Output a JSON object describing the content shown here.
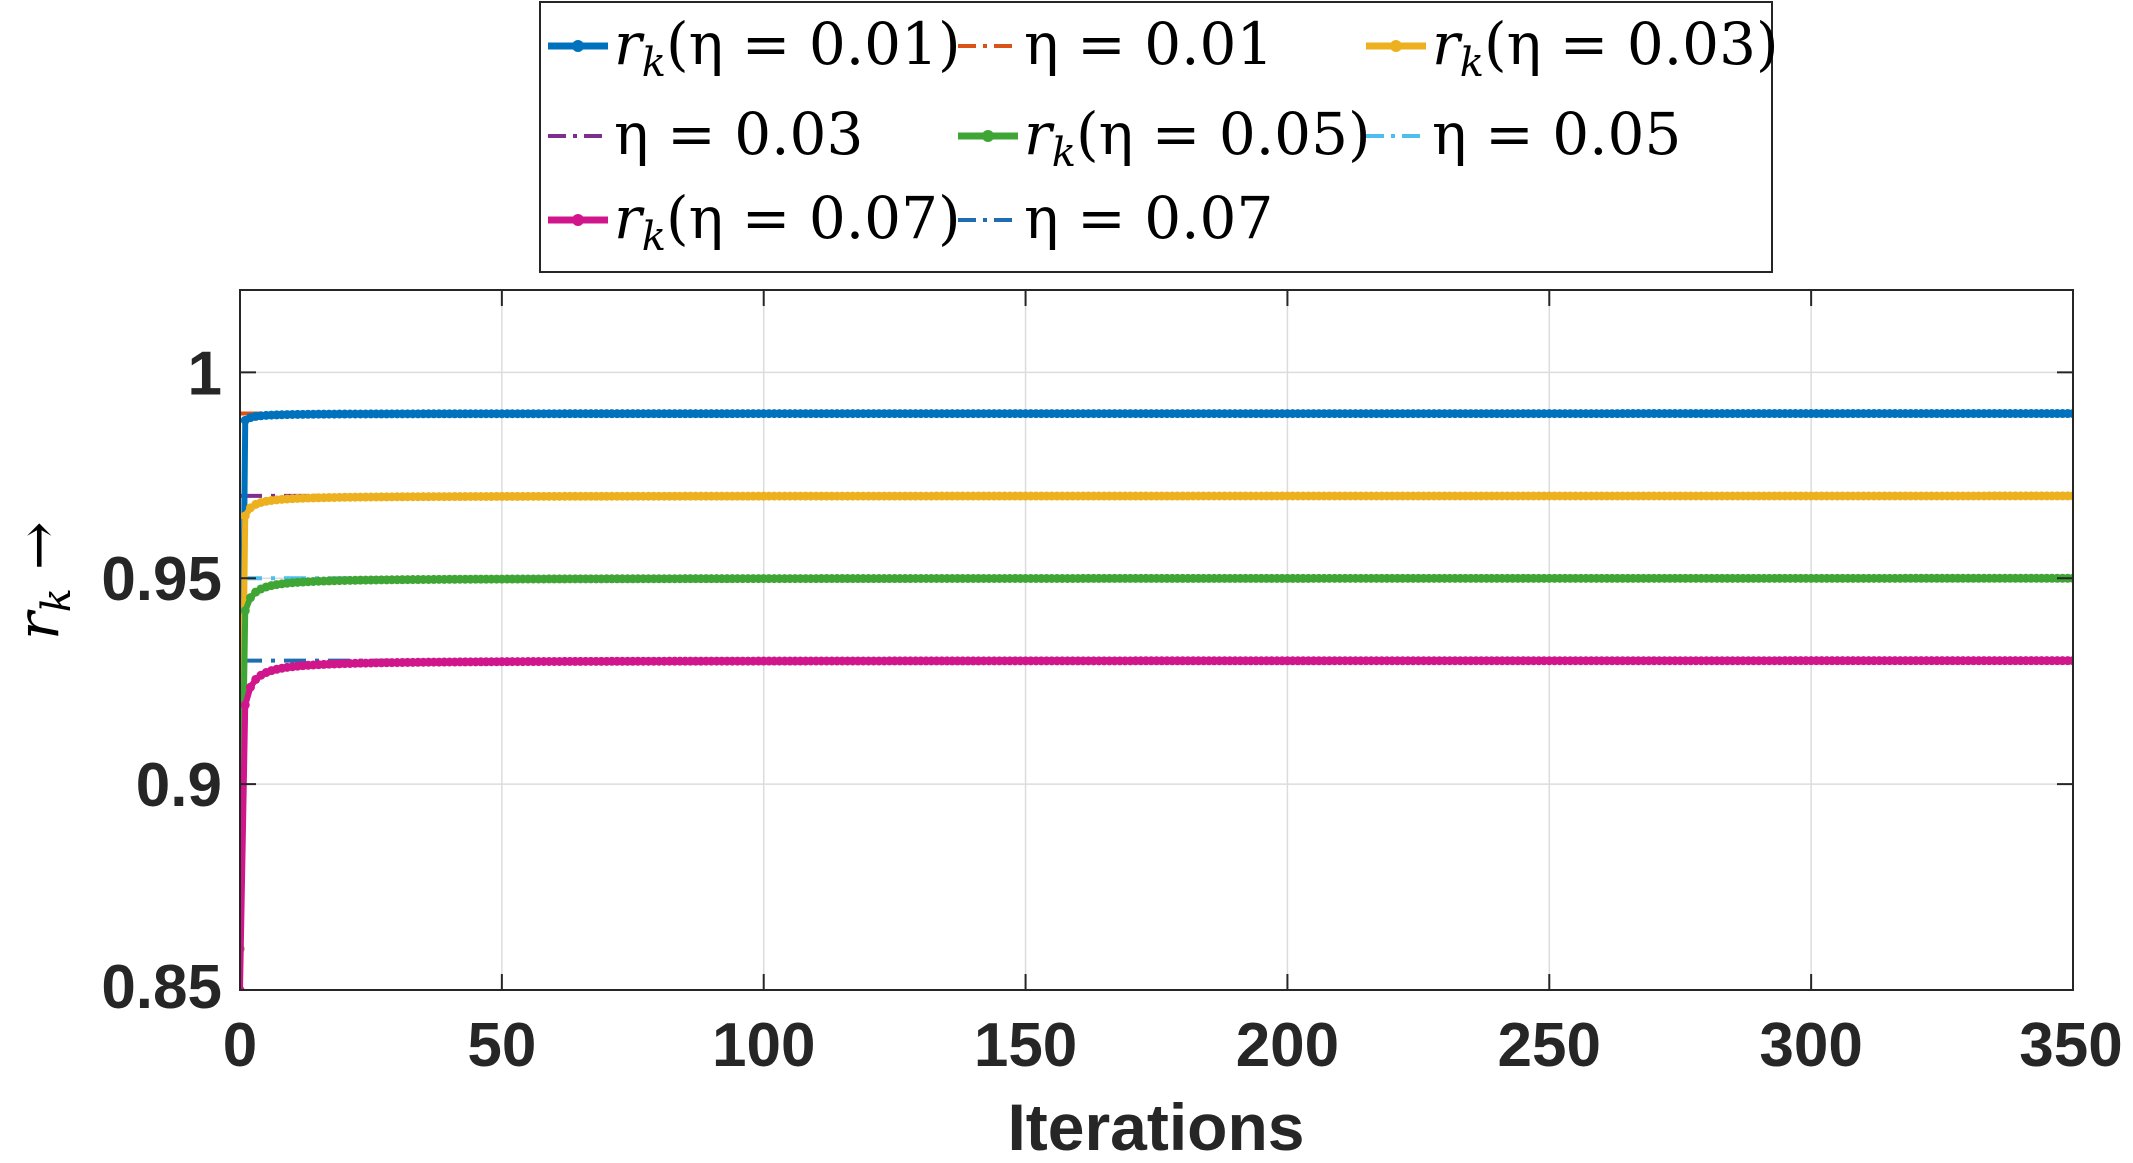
{
  "chart_data": {
    "type": "line",
    "xlabel": "Iterations",
    "ylabel": "r_k →",
    "ylabel_main": "r",
    "ylabel_sub": "k",
    "ylabel_arrow": "→",
    "xlim": [
      0,
      350
    ],
    "ylim": [
      0.85,
      1.02
    ],
    "xticks": [
      0,
      50,
      100,
      150,
      200,
      250,
      300,
      350
    ],
    "xtick_labels": [
      "0",
      "50",
      "100",
      "150",
      "200",
      "250",
      "300",
      "350"
    ],
    "yticks": [
      0.85,
      0.9,
      0.95,
      1
    ],
    "ytick_labels": [
      "0.85",
      "0.9",
      "0.95",
      "1"
    ],
    "grid": true,
    "legend_position": "top-outside",
    "legend": [
      {
        "label": "r_k(η = 0.01)",
        "text": "(η = 0.01)",
        "series": "r_k_001"
      },
      {
        "label": "η = 0.01",
        "text": "η = 0.01",
        "series": "eta_001"
      },
      {
        "label": "r_k(η = 0.03)",
        "text": "(η = 0.03)",
        "series": "r_k_003"
      },
      {
        "label": "η = 0.03",
        "text": "η = 0.03",
        "series": "eta_003"
      },
      {
        "label": "r_k(η = 0.05)",
        "text": "(η = 0.05)",
        "series": "r_k_005"
      },
      {
        "label": "η = 0.05",
        "text": "η = 0.05",
        "series": "eta_005"
      },
      {
        "label": "r_k(η = 0.07)",
        "text": "(η = 0.07)",
        "series": "r_k_007"
      },
      {
        "label": "η = 0.07",
        "text": "η = 0.07",
        "series": "eta_007"
      }
    ],
    "series": [
      {
        "id": "r_k_001",
        "name": "r_k(η = 0.01)",
        "kind": "curve",
        "color": "#0072BD",
        "style": "solid-marker",
        "start": 0.86,
        "final": 0.99,
        "eta": 0.01
      },
      {
        "id": "eta_001",
        "name": "η = 0.01",
        "kind": "reference",
        "color": "#D95319",
        "style": "dashdot",
        "value": 0.99
      },
      {
        "id": "r_k_003",
        "name": "r_k(η = 0.03)",
        "kind": "curve",
        "color": "#EDB120",
        "style": "solid-marker",
        "start": 0.86,
        "final": 0.97,
        "eta": 0.03
      },
      {
        "id": "eta_003",
        "name": "η = 0.03",
        "kind": "reference",
        "color": "#7E2F8E",
        "style": "dashdot",
        "value": 0.97
      },
      {
        "id": "r_k_005",
        "name": "r_k(η = 0.05)",
        "kind": "curve",
        "color": "#3FA535",
        "style": "solid-marker",
        "start": 0.86,
        "final": 0.95,
        "eta": 0.05
      },
      {
        "id": "eta_005",
        "name": "η = 0.05",
        "kind": "reference",
        "color": "#4DBEEE",
        "style": "dashdot",
        "value": 0.95
      },
      {
        "id": "r_k_007",
        "name": "r_k(η = 0.07)",
        "kind": "curve",
        "color": "#D0168A",
        "style": "solid-marker",
        "start": 0.85,
        "final": 0.93,
        "eta": 0.07
      },
      {
        "id": "eta_007",
        "name": "η = 0.07",
        "kind": "reference",
        "color": "#1F6DB0",
        "style": "dashdot",
        "value": 0.93
      }
    ]
  }
}
